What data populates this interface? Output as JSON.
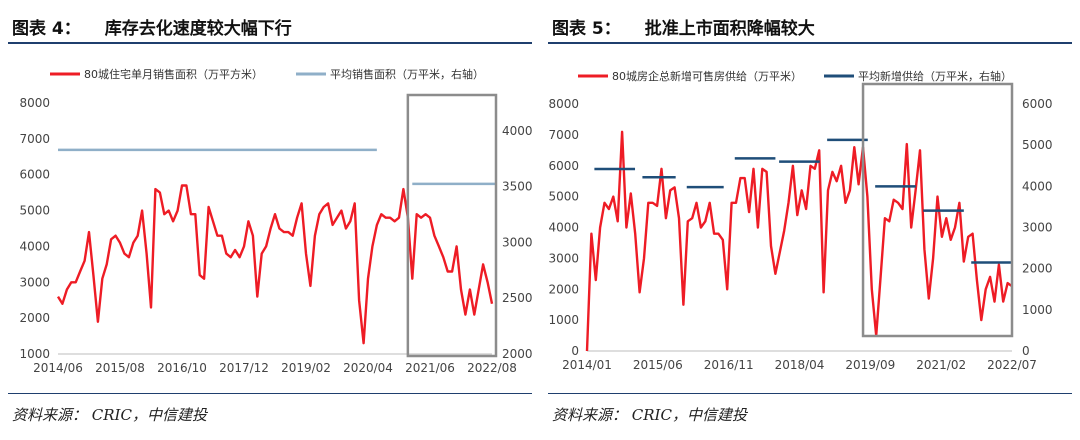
{
  "charts": [
    {
      "figure_num": "图表 4：",
      "figure_title": "库存去化速度较大幅下行",
      "source": "资料来源：  CRIC，中信建投",
      "chart_data": {
        "type": "line",
        "x_tick_labels": [
          "2014/06",
          "2015/08",
          "2016/10",
          "2017/12",
          "2019/02",
          "2020/04",
          "2021/06",
          "2022/08"
        ],
        "ylim_left": [
          1000,
          8000
        ],
        "yticks_left": [
          1000,
          2000,
          3000,
          4000,
          5000,
          6000,
          7000,
          8000
        ],
        "ylim_right": [
          2000,
          4250
        ],
        "yticks_right": [
          2000,
          2500,
          3000,
          3500,
          4000
        ],
        "grid": false,
        "legend_position": "top",
        "series": [
          {
            "name": "80城住宅单月销售面积（万平方米）",
            "axis": "left",
            "color": "#ee1c25",
            "values": [
              2600,
              2400,
              2800,
              3000,
              3000,
              3300,
              3600,
              4400,
              3200,
              1900,
              3100,
              3500,
              4200,
              4300,
              4100,
              3800,
              3700,
              4100,
              4300,
              5000,
              3800,
              2300,
              5600,
              5500,
              4900,
              5000,
              4700,
              5000,
              5700,
              5700,
              4900,
              4900,
              3200,
              3100,
              5100,
              4700,
              4300,
              4300,
              3800,
              3700,
              3900,
              3700,
              4000,
              4700,
              4300,
              2600,
              3800,
              4000,
              4500,
              4900,
              4500,
              4400,
              4400,
              4300,
              4800,
              5200,
              3800,
              2900,
              4300,
              4900,
              5100,
              5200,
              4600,
              4800,
              5000,
              4500,
              4700,
              5200,
              2500,
              1300,
              3100,
              4000,
              4600,
              4900,
              4800,
              4800,
              4700,
              4800,
              5600,
              4800,
              3100,
              4900,
              4800,
              4900,
              4800,
              4300,
              4000,
              3700,
              3300,
              3300,
              4000,
              2800,
              2100,
              2800,
              2100,
              2800,
              3500,
              3000,
              2400
            ]
          },
          {
            "name": "平均销售面积（万平米，右轴）",
            "axis": "right",
            "color": "#8fafc8",
            "segments": [
              {
                "x_start": 0,
                "x_end": 72,
                "value": 3830
              },
              {
                "x_start": 80,
                "x_end": 99,
                "value": 3525
              }
            ]
          }
        ],
        "highlight_box": {
          "x_start": 79,
          "x_end": 103
        }
      }
    },
    {
      "figure_num": "图表 5：",
      "figure_title": "批准上市面积降幅较大",
      "source": "资料来源：  CRIC，中信建投",
      "chart_data": {
        "type": "line",
        "x_tick_labels": [
          "2014/01",
          "2015/06",
          "2016/11",
          "2018/04",
          "2019/09",
          "2021/02",
          "2022/07"
        ],
        "ylim_left": [
          0,
          8000
        ],
        "yticks_left": [
          0,
          1000,
          2000,
          3000,
          4000,
          5000,
          6000,
          7000,
          8000
        ],
        "ylim_right": [
          0,
          6000
        ],
        "yticks_right": [
          0,
          1000,
          2000,
          3000,
          4000,
          5000,
          6000
        ],
        "grid": false,
        "legend_position": "top",
        "series": [
          {
            "name": "80城房企总新增可售房供给（万平米）",
            "axis": "left",
            "color": "#ee1c25",
            "values": [
              0,
              3800,
              2300,
              4000,
              4800,
              4600,
              5000,
              4200,
              7100,
              4000,
              5100,
              3800,
              1900,
              3000,
              4800,
              4800,
              4700,
              5900,
              4300,
              5200,
              5300,
              4300,
              1500,
              4200,
              4300,
              4800,
              4000,
              4200,
              4800,
              3800,
              3800,
              3600,
              2000,
              4800,
              4800,
              5600,
              5600,
              4500,
              5900,
              4000,
              5900,
              5800,
              3400,
              2500,
              3200,
              3900,
              4800,
              6000,
              4400,
              5200,
              4600,
              6000,
              5900,
              6500,
              1900,
              5200,
              5800,
              5500,
              6000,
              4800,
              5200,
              6600,
              5400,
              6600,
              5000,
              2000,
              500,
              2400,
              4300,
              4200,
              4900,
              4800,
              4600,
              6700,
              4000,
              5200,
              6500,
              3300,
              1700,
              3000,
              5000,
              3700,
              4300,
              3600,
              4000,
              4800,
              2900,
              3700,
              3800,
              2300,
              1000,
              2000,
              2400,
              1600,
              2800,
              1600,
              2200,
              2100
            ]
          },
          {
            "name": "平均新增供给（万平米，右轴）",
            "axis": "right",
            "color": "#1f4e79",
            "segments": [
              {
                "x_start": 2,
                "x_end": 13,
                "value": 4420
              },
              {
                "x_start": 15,
                "x_end": 24,
                "value": 4220
              },
              {
                "x_start": 27,
                "x_end": 37,
                "value": 3980
              },
              {
                "x_start": 40,
                "x_end": 51,
                "value": 4680
              },
              {
                "x_start": 52,
                "x_end": 63,
                "value": 4600
              },
              {
                "x_start": 65,
                "x_end": 76,
                "value": 5130
              },
              {
                "x_start": 78,
                "x_end": 89,
                "value": 4000
              },
              {
                "x_start": 91,
                "x_end": 102,
                "value": 3410
              },
              {
                "x_start": 104,
                "x_end": 115,
                "value": 2150
              }
            ],
            "x_scale": 0.8432
          }
        ],
        "highlight_box": {
          "x_start": 63,
          "x_end": 97
        }
      }
    }
  ]
}
